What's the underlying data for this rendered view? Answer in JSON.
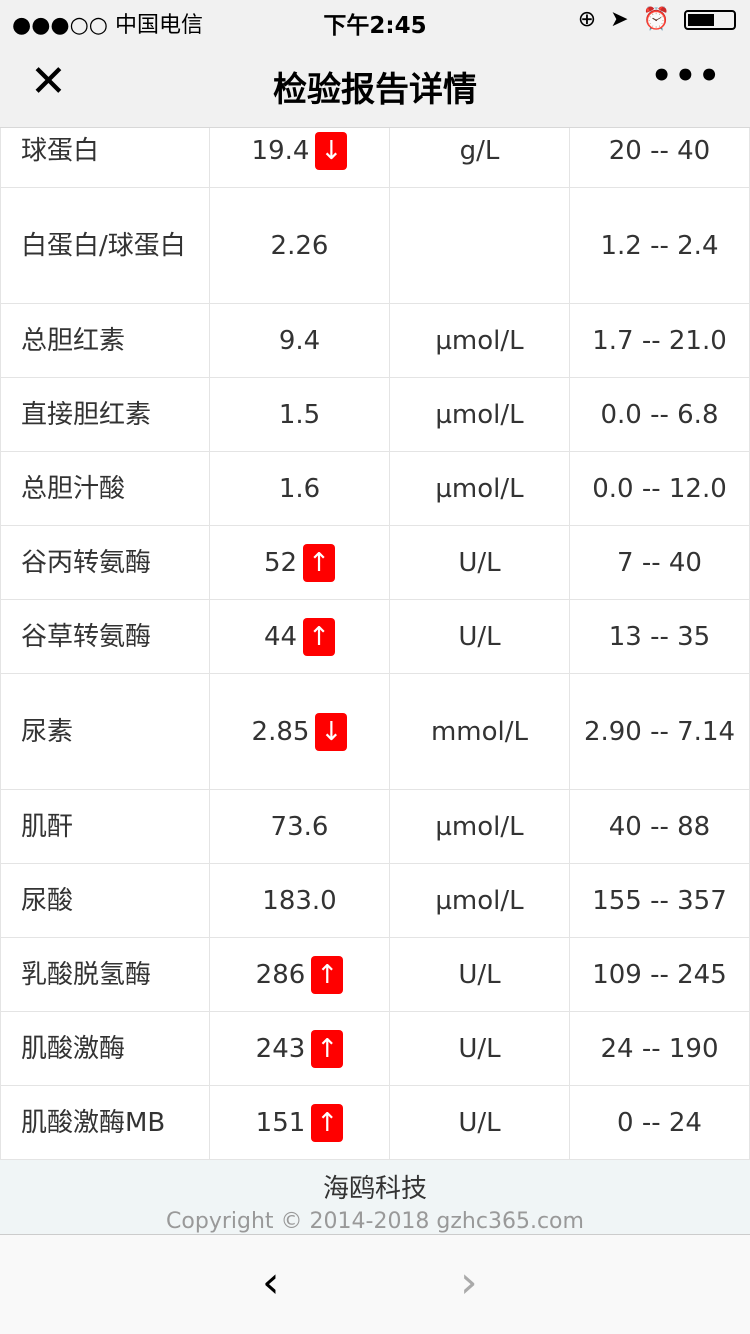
{
  "status_bar": {
    "carrier": "●●●○○ 中国电信",
    "time": "下午2:45"
  },
  "nav": {
    "title": "检验报告详情",
    "close_icon": "close-icon",
    "more_icon": "more-icon"
  },
  "rows": [
    {
      "name": "球蛋白",
      "result": "19.4",
      "flag": "↓",
      "unit": "g/L",
      "range": "20 -- 40"
    },
    {
      "name": "白蛋白/球蛋白",
      "result": "2.26",
      "flag": "",
      "unit": "",
      "range": "1.2 -- 2.4",
      "tall": true
    },
    {
      "name": "总胆红素",
      "result": "9.4",
      "flag": "",
      "unit": "µmol/L",
      "range": "1.7 -- 21.0"
    },
    {
      "name": "直接胆红素",
      "result": "1.5",
      "flag": "",
      "unit": "µmol/L",
      "range": "0.0 -- 6.8"
    },
    {
      "name": "总胆汁酸",
      "result": "1.6",
      "flag": "",
      "unit": "µmol/L",
      "range": "0.0 -- 12.0"
    },
    {
      "name": "谷丙转氨酶",
      "result": "52",
      "flag": "↑",
      "unit": "U/L",
      "range": "7 -- 40"
    },
    {
      "name": "谷草转氨酶",
      "result": "44",
      "flag": "↑",
      "unit": "U/L",
      "range": "13 -- 35"
    },
    {
      "name": "尿素",
      "result": "2.85",
      "flag": "↓",
      "unit": "mmol/L",
      "range": "2.90 -- 7.14",
      "tall": true
    },
    {
      "name": "肌酐",
      "result": "73.6",
      "flag": "",
      "unit": "µmol/L",
      "range": "40 -- 88"
    },
    {
      "name": "尿酸",
      "result": "183.0",
      "flag": "",
      "unit": "µmol/L",
      "range": "155 -- 357"
    },
    {
      "name": "乳酸脱氢酶",
      "result": "286",
      "flag": "↑",
      "unit": "U/L",
      "range": "109 -- 245"
    },
    {
      "name": "肌酸激酶",
      "result": "243",
      "flag": "↑",
      "unit": "U/L",
      "range": "24 -- 190"
    },
    {
      "name": "肌酸激酶MB",
      "result": "151",
      "flag": "↑",
      "unit": "U/L",
      "range": "0 -- 24"
    }
  ],
  "footer": {
    "company": "海鸥科技",
    "copyright": "Copyright © 2014-2018 gzhc365.com"
  },
  "toolbar": {
    "back": "‹",
    "forward": "›"
  },
  "colors": {
    "flag": "#ff0000"
  }
}
